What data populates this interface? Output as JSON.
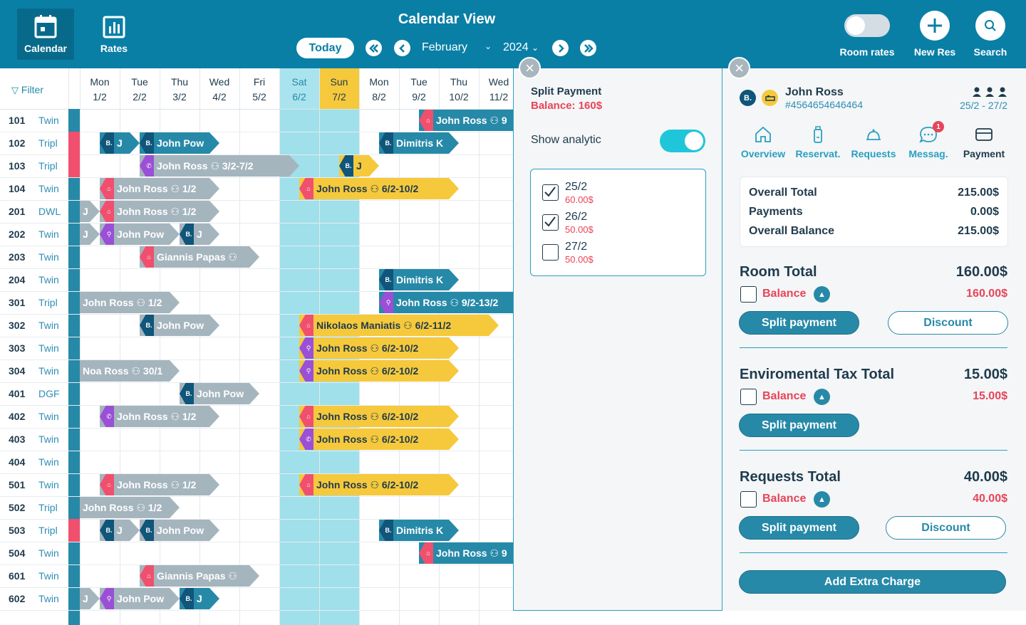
{
  "nav": {
    "calendar_label": "Calendar",
    "rates_label": "Rates"
  },
  "header": {
    "title": "Calendar View",
    "today_label": "Today",
    "month": "February",
    "year": "2024"
  },
  "top_actions": {
    "room_rates_label": "Room rates",
    "new_res_label": "New Res",
    "search_label": "Search"
  },
  "calendar": {
    "filter_label": "Filter",
    "days": [
      {
        "dow": "Mon",
        "date": "1/2"
      },
      {
        "dow": "Tue",
        "date": "2/2"
      },
      {
        "dow": "Thu",
        "date": "3/2"
      },
      {
        "dow": "Wed",
        "date": "4/2"
      },
      {
        "dow": "Fri",
        "date": "5/2"
      },
      {
        "dow": "Sat",
        "date": "6/2"
      },
      {
        "dow": "Sun",
        "date": "7/2"
      },
      {
        "dow": "Mon",
        "date": "8/2"
      },
      {
        "dow": "Tue",
        "date": "9/2"
      },
      {
        "dow": "Thu",
        "date": "10/2"
      },
      {
        "dow": "Wed",
        "date": "11/2"
      }
    ],
    "rooms": [
      {
        "no": "101",
        "type": "Twin"
      },
      {
        "no": "102",
        "type": "Tripl"
      },
      {
        "no": "103",
        "type": "Tripl"
      },
      {
        "no": "104",
        "type": "Twin"
      },
      {
        "no": "201",
        "type": "DWL"
      },
      {
        "no": "202",
        "type": "Twin"
      },
      {
        "no": "203",
        "type": "Twin"
      },
      {
        "no": "204",
        "type": "Twin"
      },
      {
        "no": "301",
        "type": "Tripl"
      },
      {
        "no": "302",
        "type": "Twin"
      },
      {
        "no": "303",
        "type": "Twin"
      },
      {
        "no": "304",
        "type": "Twin"
      },
      {
        "no": "401",
        "type": "DGF"
      },
      {
        "no": "402",
        "type": "Twin"
      },
      {
        "no": "403",
        "type": "Twin"
      },
      {
        "no": "404",
        "type": "Twin"
      },
      {
        "no": "501",
        "type": "Twin"
      },
      {
        "no": "502",
        "type": "Tripl"
      },
      {
        "no": "503",
        "type": "Tripl"
      },
      {
        "no": "504",
        "type": "Twin"
      },
      {
        "no": "601",
        "type": "Twin"
      },
      {
        "no": "602",
        "type": "Twin"
      }
    ],
    "bookings": [
      {
        "row": 0,
        "start": 8.5,
        "end": 11,
        "color": "teal",
        "src": "airbnb",
        "text": "John Ross 👥 9"
      },
      {
        "row": 1,
        "start": 0.5,
        "end": 1.5,
        "color": "teal",
        "src": "booking",
        "text": "J"
      },
      {
        "row": 1,
        "start": 1.5,
        "end": 3.5,
        "color": "teal",
        "src": "booking",
        "text": "John Pow"
      },
      {
        "row": 1,
        "start": 7.5,
        "end": 9.5,
        "color": "teal",
        "src": "booking",
        "text": "Dimitris K"
      },
      {
        "row": 2,
        "start": 1.5,
        "end": 5.5,
        "color": "gray",
        "src": "phone",
        "text": "John Ross 👥 3/2-7/2"
      },
      {
        "row": 2,
        "start": 6.5,
        "end": 7.5,
        "color": "yellow",
        "src": "booking",
        "text": "J"
      },
      {
        "row": 3,
        "start": 0.5,
        "end": 3.5,
        "color": "gray",
        "src": "airbnb",
        "text": "John Ross 👥 1/2"
      },
      {
        "row": 3,
        "start": 5.5,
        "end": 9.5,
        "color": "yellow",
        "src": "airbnb",
        "text": "John Ross 👥 6/2-10/2"
      },
      {
        "row": 4,
        "start": 0,
        "end": 0.5,
        "color": "gray",
        "src": "none",
        "text": "J"
      },
      {
        "row": 4,
        "start": 0.5,
        "end": 3.5,
        "color": "gray",
        "src": "airbnb",
        "text": "John Ross 👥 1/2"
      },
      {
        "row": 5,
        "start": 0,
        "end": 0.5,
        "color": "gray",
        "src": "none",
        "text": "J"
      },
      {
        "row": 5,
        "start": 0.5,
        "end": 2.5,
        "color": "gray",
        "src": "walk",
        "text": "John Pow"
      },
      {
        "row": 5,
        "start": 2.5,
        "end": 3.5,
        "color": "gray",
        "src": "booking",
        "text": "J"
      },
      {
        "row": 6,
        "start": 1.5,
        "end": 4.5,
        "color": "gray",
        "src": "airbnb",
        "text": "Giannis Papas 👥"
      },
      {
        "row": 7,
        "start": 7.5,
        "end": 9.5,
        "color": "teal",
        "src": "booking",
        "text": "Dimitris K"
      },
      {
        "row": 8,
        "start": 0,
        "end": 2.5,
        "color": "gray",
        "src": "none",
        "text": "John Ross 👥 1/2"
      },
      {
        "row": 8,
        "start": 7.5,
        "end": 11,
        "color": "teal",
        "src": "walk",
        "text": "John Ross 👥 9/2-13/2"
      },
      {
        "row": 9,
        "start": 1.5,
        "end": 3.5,
        "color": "gray",
        "src": "booking",
        "text": "John Pow"
      },
      {
        "row": 9,
        "start": 5.5,
        "end": 10.5,
        "color": "yellow",
        "src": "airbnb",
        "text": "Nikolaos Maniatis 👥 6/2-11/2"
      },
      {
        "row": 10,
        "start": 5.5,
        "end": 9.5,
        "color": "yellow",
        "src": "walk",
        "text": "John Ross 👥 6/2-10/2"
      },
      {
        "row": 11,
        "start": 0,
        "end": 2.5,
        "color": "gray",
        "src": "none",
        "text": "Noa Ross 👥 30/1"
      },
      {
        "row": 11,
        "start": 5.5,
        "end": 9.5,
        "color": "yellow",
        "src": "walk",
        "text": "John Ross 👥 6/2-10/2"
      },
      {
        "row": 12,
        "start": 2.5,
        "end": 4.5,
        "color": "gray",
        "src": "booking",
        "text": "John Pow"
      },
      {
        "row": 13,
        "start": 0.5,
        "end": 3.5,
        "color": "gray",
        "src": "phone",
        "text": "John Ross 👥 1/2"
      },
      {
        "row": 13,
        "start": 5.5,
        "end": 9.5,
        "color": "yellow",
        "src": "airbnb",
        "text": "John Ross 👥 6/2-10/2"
      },
      {
        "row": 14,
        "start": 5.5,
        "end": 9.5,
        "color": "yellow",
        "src": "phone",
        "text": "John Ross 👥 6/2-10/2"
      },
      {
        "row": 16,
        "start": 0.5,
        "end": 3.5,
        "color": "gray",
        "src": "airbnb",
        "text": "John Ross 👥 1/2"
      },
      {
        "row": 16,
        "start": 5.5,
        "end": 9.5,
        "color": "yellow",
        "src": "airbnb",
        "text": "John Ross 👥 6/2-10/2"
      },
      {
        "row": 17,
        "start": 0,
        "end": 2.5,
        "color": "gray",
        "src": "none",
        "text": "John Ross 👥 1/2"
      },
      {
        "row": 18,
        "start": 0.5,
        "end": 1.5,
        "color": "gray",
        "src": "booking",
        "text": "J"
      },
      {
        "row": 18,
        "start": 1.5,
        "end": 3.5,
        "color": "gray",
        "src": "booking",
        "text": "John Pow"
      },
      {
        "row": 18,
        "start": 7.5,
        "end": 9.5,
        "color": "teal",
        "src": "booking",
        "text": "Dimitris K"
      },
      {
        "row": 19,
        "start": 8.5,
        "end": 11,
        "color": "teal",
        "src": "airbnb",
        "text": "John Ross 👥 9"
      },
      {
        "row": 20,
        "start": 1.5,
        "end": 4.5,
        "color": "gray",
        "src": "airbnb",
        "text": "Giannis Papas 👥"
      },
      {
        "row": 21,
        "start": 0,
        "end": 0.5,
        "color": "gray",
        "src": "none",
        "text": "J"
      },
      {
        "row": 21,
        "start": 0.5,
        "end": 2.5,
        "color": "gray",
        "src": "walk",
        "text": "John Pow"
      },
      {
        "row": 21,
        "start": 2.5,
        "end": 3.5,
        "color": "teal",
        "src": "booking",
        "text": "J"
      }
    ]
  },
  "split_payment": {
    "title": "Split Payment",
    "balance": "Balance: 160$",
    "show_analytic_label": "Show analytic",
    "dates": [
      {
        "date": "25/2",
        "price": "60.00$",
        "checked": true
      },
      {
        "date": "26/2",
        "price": "50.00$",
        "checked": true
      },
      {
        "date": "27/2",
        "price": "50.00$",
        "checked": false
      }
    ]
  },
  "guest": {
    "avatar_letter": "B.",
    "name": "John Ross",
    "id": "#4564654646464",
    "dates": "25/2 - 27/2"
  },
  "tabs": [
    {
      "label": "Overview",
      "icon": "home-icon"
    },
    {
      "label": "Reservat.",
      "icon": "reservation-icon"
    },
    {
      "label": "Requests",
      "icon": "bell-icon"
    },
    {
      "label": "Messag.",
      "icon": "message-icon",
      "badge": "1"
    },
    {
      "label": "Payment",
      "icon": "card-icon"
    }
  ],
  "summary": [
    {
      "label": "Overall Total",
      "value": "215.00$"
    },
    {
      "label": "Payments",
      "value": "0.00$"
    },
    {
      "label": "Overall Balance",
      "value": "215.00$"
    }
  ],
  "sections": {
    "room": {
      "title": "Room Total",
      "amount": "160.00$",
      "balance_label": "Balance",
      "balance": "160.00$",
      "split_label": "Split payment",
      "discount_label": "Discount"
    },
    "tax": {
      "title": "Enviromental Tax Total",
      "amount": "15.00$",
      "balance_label": "Balance",
      "balance": "15.00$",
      "split_label": "Split payment"
    },
    "requests": {
      "title": "Requests Total",
      "amount": "40.00$",
      "balance_label": "Balance",
      "balance": "40.00$",
      "split_label": "Split payment",
      "discount_label": "Discount"
    }
  },
  "add_extra_label": "Add Extra Charge",
  "colors": {
    "brand": "#0a7fa6",
    "teal": "#2789a8",
    "gray": "#a5b5be",
    "yellow": "#f6c93c",
    "alert": "#e8445a"
  }
}
